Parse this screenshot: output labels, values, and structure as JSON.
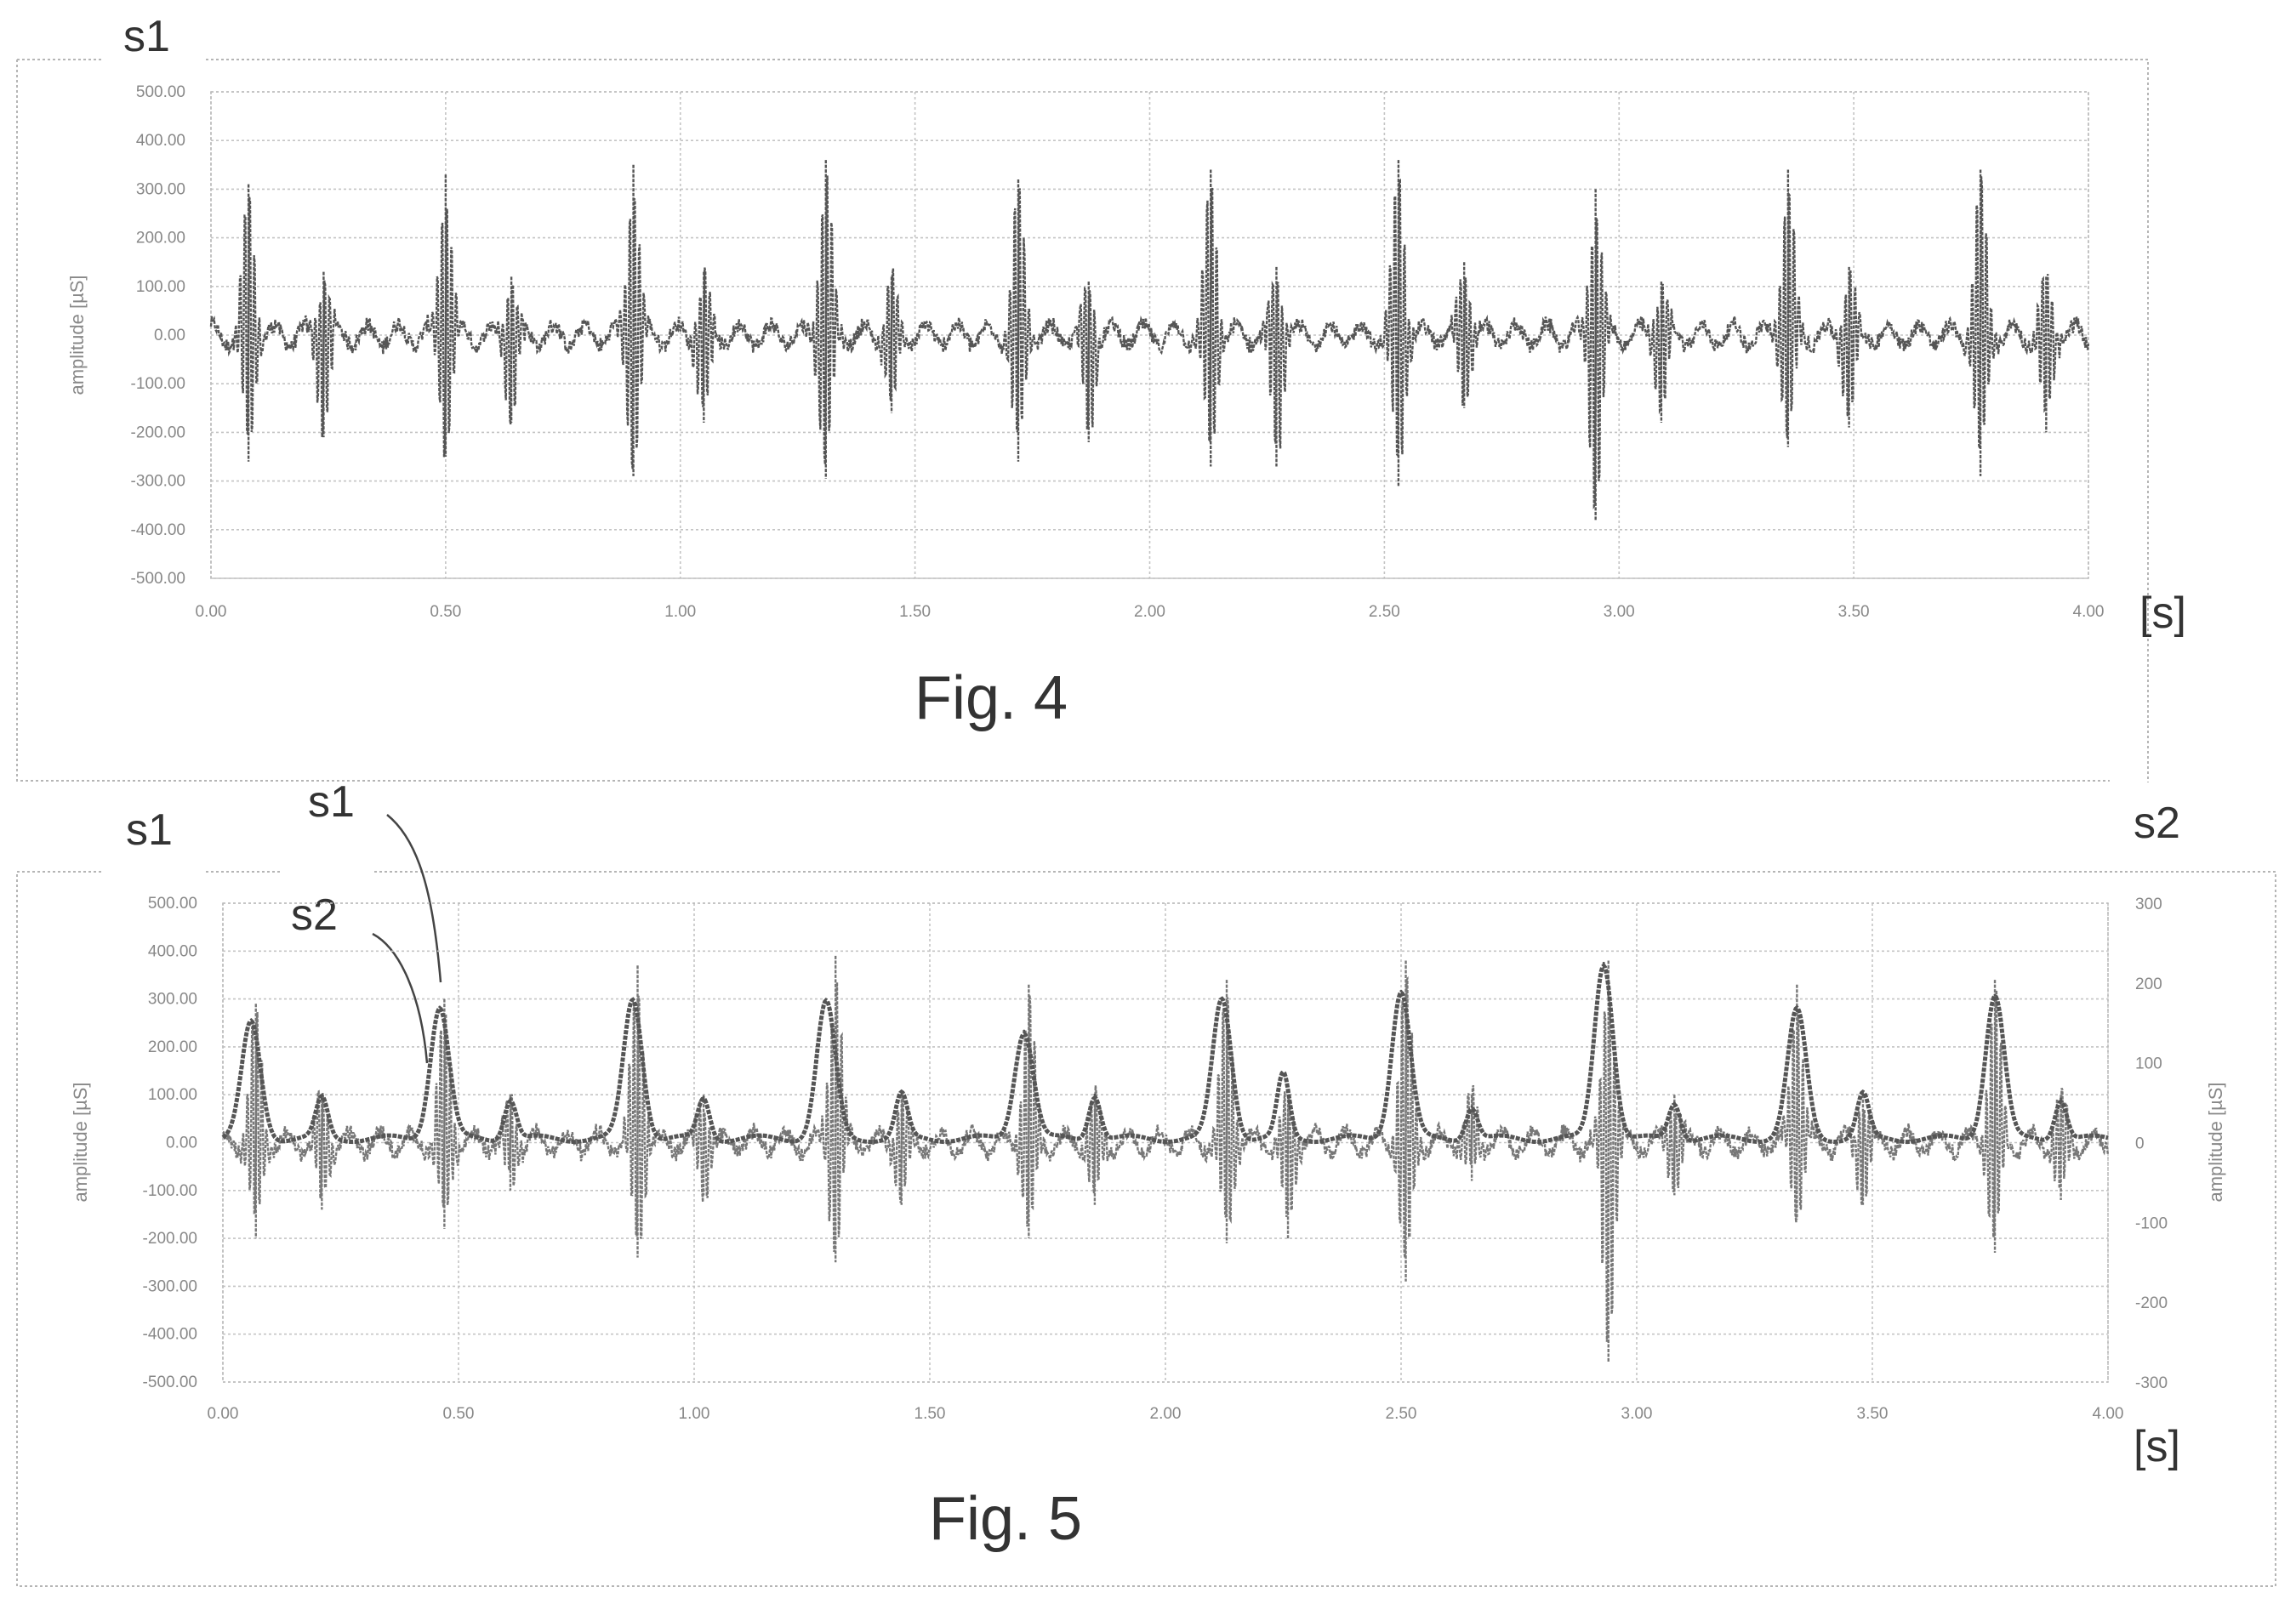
{
  "figures": [
    {
      "caption": "Fig. 4",
      "left_series_label": "s1",
      "x_unit": "[s]"
    },
    {
      "caption": "Fig. 5",
      "left_series_label": "s1",
      "right_series_label": "s2",
      "x_unit": "[s]",
      "callouts": [
        "s1",
        "s2"
      ]
    }
  ],
  "chart_data": [
    {
      "type": "line",
      "xlabel": "[s]",
      "ylabel": "amplitude [µS]",
      "xlim": [
        0,
        4
      ],
      "ylim": [
        -500,
        500
      ],
      "x_ticks": [
        "0.00",
        "0.50",
        "1.00",
        "1.50",
        "2.00",
        "2.50",
        "3.00",
        "3.50",
        "4.00"
      ],
      "y_ticks": [
        "500.00",
        "400.00",
        "300.00",
        "200.00",
        "100.00",
        "0.00",
        "-100.00",
        "-200.00",
        "-300.00",
        "-400.00",
        "-500.00"
      ],
      "grid": true,
      "series": [
        {
          "name": "s1",
          "color": "#555555",
          "bursts": [
            {
              "x": 0.08,
              "max": 310,
              "min": -260
            },
            {
              "x": 0.24,
              "max": 130,
              "min": -210
            },
            {
              "x": 0.5,
              "max": 330,
              "min": -250
            },
            {
              "x": 0.64,
              "max": 120,
              "min": -180
            },
            {
              "x": 0.9,
              "max": 350,
              "min": -290
            },
            {
              "x": 1.05,
              "max": 130,
              "min": -180
            },
            {
              "x": 1.31,
              "max": 360,
              "min": -295
            },
            {
              "x": 1.45,
              "max": 120,
              "min": -160
            },
            {
              "x": 1.72,
              "max": 320,
              "min": -260
            },
            {
              "x": 1.87,
              "max": 110,
              "min": -220
            },
            {
              "x": 2.13,
              "max": 340,
              "min": -270
            },
            {
              "x": 2.27,
              "max": 140,
              "min": -270
            },
            {
              "x": 2.53,
              "max": 360,
              "min": -310
            },
            {
              "x": 2.67,
              "max": 150,
              "min": -150
            },
            {
              "x": 2.95,
              "max": 300,
              "min": -380
            },
            {
              "x": 3.09,
              "max": 110,
              "min": -180
            },
            {
              "x": 3.36,
              "max": 340,
              "min": -230
            },
            {
              "x": 3.49,
              "max": 140,
              "min": -190
            },
            {
              "x": 3.77,
              "max": 340,
              "min": -290
            },
            {
              "x": 3.91,
              "max": 120,
              "min": -200
            }
          ]
        }
      ]
    },
    {
      "type": "line",
      "xlabel": "[s]",
      "ylabel": "amplitude [µS]",
      "y2label": "amplitude [µS]",
      "xlim": [
        0,
        4
      ],
      "ylim": [
        -500,
        500
      ],
      "y2lim": [
        -300,
        300
      ],
      "x_ticks": [
        "0.00",
        "0.50",
        "1.00",
        "1.50",
        "2.00",
        "2.50",
        "3.00",
        "3.50",
        "4.00"
      ],
      "y_ticks": [
        "500.00",
        "400.00",
        "300.00",
        "200.00",
        "100.00",
        "0.00",
        "-100.00",
        "-200.00",
        "-300.00",
        "-400.00",
        "-500.00"
      ],
      "y2_ticks": [
        "300",
        "200",
        "100",
        "0",
        "-100",
        "-200",
        "-300"
      ],
      "grid": true,
      "series": [
        {
          "name": "s1",
          "axis": "left",
          "color": "#777777",
          "bursts": [
            {
              "x": 0.07,
              "max": 290,
              "min": -200
            },
            {
              "x": 0.21,
              "max": 100,
              "min": -140
            },
            {
              "x": 0.47,
              "max": 300,
              "min": -180
            },
            {
              "x": 0.61,
              "max": 100,
              "min": -100
            },
            {
              "x": 0.88,
              "max": 370,
              "min": -240
            },
            {
              "x": 1.02,
              "max": 100,
              "min": -110
            },
            {
              "x": 1.3,
              "max": 390,
              "min": -250
            },
            {
              "x": 1.44,
              "max": 100,
              "min": -130
            },
            {
              "x": 1.71,
              "max": 330,
              "min": -200
            },
            {
              "x": 1.85,
              "max": 100,
              "min": -130
            },
            {
              "x": 2.13,
              "max": 340,
              "min": -210
            },
            {
              "x": 2.26,
              "max": 100,
              "min": -200
            },
            {
              "x": 2.51,
              "max": 380,
              "min": -290
            },
            {
              "x": 2.65,
              "max": 100,
              "min": -80
            },
            {
              "x": 2.94,
              "max": 380,
              "min": -460
            },
            {
              "x": 3.08,
              "max": 100,
              "min": -110
            },
            {
              "x": 3.34,
              "max": 330,
              "min": -160
            },
            {
              "x": 3.48,
              "max": 100,
              "min": -130
            },
            {
              "x": 3.76,
              "max": 340,
              "min": -230
            },
            {
              "x": 3.9,
              "max": 100,
              "min": -120
            }
          ]
        },
        {
          "name": "s2",
          "axis": "right",
          "color": "#555555",
          "baseline": 5,
          "peaks": [
            {
              "x": 0.06,
              "y": 150
            },
            {
              "x": 0.21,
              "y": 55
            },
            {
              "x": 0.46,
              "y": 170
            },
            {
              "x": 0.61,
              "y": 55
            },
            {
              "x": 0.87,
              "y": 180
            },
            {
              "x": 1.02,
              "y": 55
            },
            {
              "x": 1.28,
              "y": 175
            },
            {
              "x": 1.44,
              "y": 60
            },
            {
              "x": 1.7,
              "y": 140
            },
            {
              "x": 1.85,
              "y": 60
            },
            {
              "x": 2.12,
              "y": 180
            },
            {
              "x": 2.25,
              "y": 85
            },
            {
              "x": 2.5,
              "y": 190
            },
            {
              "x": 2.65,
              "y": 45
            },
            {
              "x": 2.93,
              "y": 225
            },
            {
              "x": 3.08,
              "y": 50
            },
            {
              "x": 3.34,
              "y": 165
            },
            {
              "x": 3.48,
              "y": 60
            },
            {
              "x": 3.76,
              "y": 185
            },
            {
              "x": 3.9,
              "y": 55
            }
          ]
        }
      ]
    }
  ]
}
